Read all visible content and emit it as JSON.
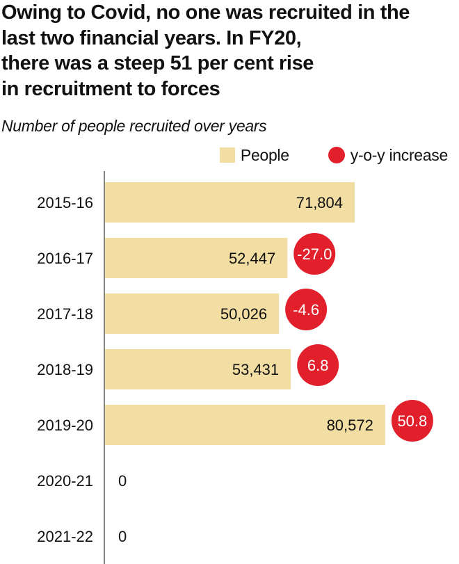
{
  "title": "Owing to Covid, no one was recruited in the last two financial years. In FY20, there was a steep 51 per cent rise in recruitment to forces",
  "title_lines": [
    "Owing to Covid, no one was recruited in the",
    "last two financial years. In FY20,",
    "there was a steep 51 per cent rise",
    "in recruitment to forces"
  ],
  "subtitle": "Number of people recruited over years",
  "legend": {
    "people": "People",
    "yoy": "y-o-y increase"
  },
  "colors": {
    "bar": "#f2dea3",
    "circle": "#e2202c",
    "circle_text": "#ffffff",
    "axis": "#333333",
    "text": "#111111"
  },
  "chart_data": {
    "type": "bar",
    "orientation": "horizontal",
    "categories": [
      "2015-16",
      "2016-17",
      "2017-18",
      "2018-19",
      "2019-20",
      "2020-21",
      "2021-22"
    ],
    "series": [
      {
        "name": "People",
        "values": [
          71804,
          52447,
          50026,
          53431,
          80572,
          0,
          0
        ],
        "labels": [
          "71,804",
          "52,447",
          "50,026",
          "53,431",
          "80,572",
          "0",
          "0"
        ]
      },
      {
        "name": "y-o-y increase",
        "values": [
          null,
          -27.0,
          -4.6,
          6.8,
          50.8,
          null,
          null
        ],
        "labels": [
          null,
          "-27.0",
          "-4.6",
          "6.8",
          "50.8",
          null,
          null
        ]
      }
    ],
    "xlim": [
      0,
      84000
    ],
    "grid": false,
    "legend_position": "top-right"
  }
}
